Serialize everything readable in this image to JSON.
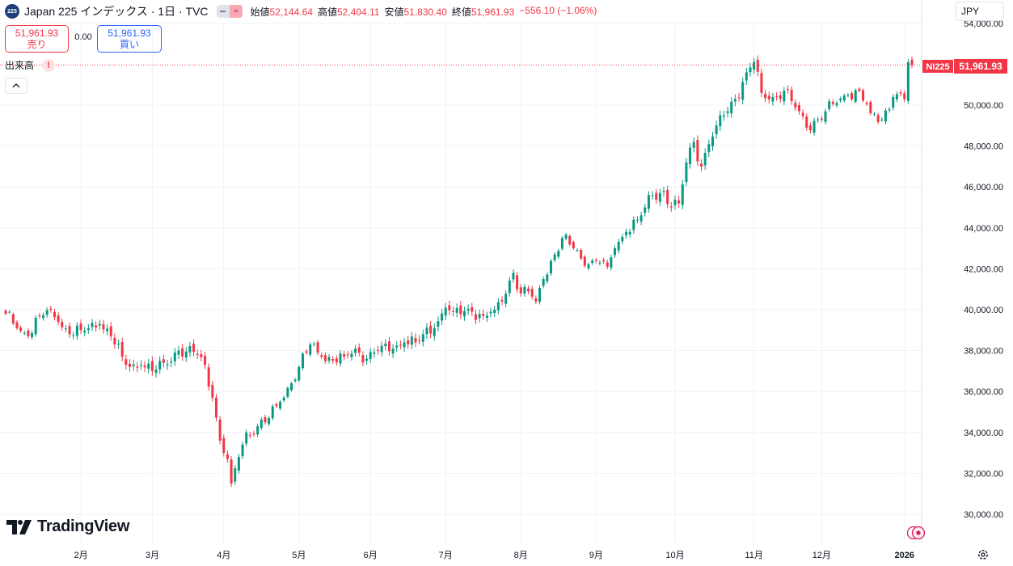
{
  "header": {
    "badge": "225",
    "title": "Japan 225 インデックス · 1日 · TVC",
    "toggle_a": "━",
    "toggle_b": "≈",
    "open_label": "始値",
    "open": "52,144.64",
    "high_label": "高値",
    "high": "52,404.11",
    "low_label": "安値",
    "low": "51,830.40",
    "close_label": "終値",
    "close": "51,961.93",
    "change": "−556.10 (−1.06%)"
  },
  "trade": {
    "sell_price": "51,961.93",
    "sell_label": "売り",
    "spread": "0.00",
    "buy_price": "51,961.93",
    "buy_label": "買い"
  },
  "volume": {
    "label": "出来高",
    "warning": "!"
  },
  "currency": "JPY",
  "branding": {
    "name": "TradingView"
  },
  "icons": {
    "collapse": "chevron-up-icon",
    "record": "record-icon",
    "settings": "gear-icon",
    "logo": "tradingview-logo-icon"
  },
  "colors": {
    "up": "#089981",
    "down": "#f23645",
    "last_price": "#f23645",
    "grid": "#f0f3fa"
  },
  "chart_data": {
    "type": "candlestick",
    "symbol_label": "NI225",
    "last_price": "51,961.93",
    "last_value": 51961.93,
    "ylim": [
      29000,
      54000
    ],
    "y_ticks": [
      "30,000.00",
      "32,000.00",
      "34,000.00",
      "36,000.00",
      "38,000.00",
      "40,000.00",
      "42,000.00",
      "44,000.00",
      "46,000.00",
      "48,000.00",
      "50,000.00",
      "54,000.00"
    ],
    "y_tick_values": [
      30000,
      32000,
      34000,
      36000,
      38000,
      40000,
      42000,
      44000,
      46000,
      48000,
      50000,
      54000
    ],
    "x_ticks": [
      "2月",
      "3月",
      "4月",
      "5月",
      "6月",
      "7月",
      "8月",
      "9月",
      "10月",
      "11月",
      "12月",
      "2026"
    ],
    "x_tick_days": [
      20,
      39,
      58,
      78,
      97,
      117,
      137,
      157,
      178,
      199,
      217,
      239
    ],
    "n_days": 242,
    "close_path": [
      [
        0,
        39800
      ],
      [
        3,
        39100
      ],
      [
        6,
        38700
      ],
      [
        9,
        39700
      ],
      [
        12,
        40000
      ],
      [
        14,
        39400
      ],
      [
        17,
        38800
      ],
      [
        20,
        39000
      ],
      [
        25,
        39300
      ],
      [
        28,
        38700
      ],
      [
        31,
        37700
      ],
      [
        33,
        37200
      ],
      [
        36,
        37300
      ],
      [
        39,
        37000
      ],
      [
        42,
        37400
      ],
      [
        46,
        38000
      ],
      [
        51,
        37800
      ],
      [
        53,
        37300
      ],
      [
        55,
        35700
      ],
      [
        57,
        33600
      ],
      [
        59,
        32700
      ],
      [
        60,
        31500
      ],
      [
        62,
        32800
      ],
      [
        64,
        34000
      ],
      [
        67,
        34300
      ],
      [
        70,
        34700
      ],
      [
        73,
        35500
      ],
      [
        76,
        36400
      ],
      [
        78,
        37200
      ],
      [
        81,
        38300
      ],
      [
        84,
        37700
      ],
      [
        87,
        37500
      ],
      [
        90,
        37700
      ],
      [
        93,
        38100
      ],
      [
        96,
        37600
      ],
      [
        99,
        38000
      ],
      [
        103,
        38100
      ],
      [
        106,
        38400
      ],
      [
        109,
        38400
      ],
      [
        111,
        38800
      ],
      [
        114,
        39100
      ],
      [
        117,
        40100
      ],
      [
        119,
        39900
      ],
      [
        124,
        39900
      ],
      [
        127,
        39700
      ],
      [
        130,
        40000
      ],
      [
        132,
        40400
      ],
      [
        135,
        41800
      ],
      [
        137,
        40800
      ],
      [
        139,
        40900
      ],
      [
        141,
        40400
      ],
      [
        143,
        41500
      ],
      [
        146,
        42700
      ],
      [
        148,
        43500
      ],
      [
        151,
        43000
      ],
      [
        153,
        42500
      ],
      [
        156,
        42400
      ],
      [
        158,
        42300
      ],
      [
        160,
        42100
      ],
      [
        162,
        43000
      ],
      [
        165,
        43800
      ],
      [
        168,
        44400
      ],
      [
        170,
        45000
      ],
      [
        172,
        45600
      ],
      [
        175,
        45800
      ],
      [
        177,
        45000
      ],
      [
        179,
        45200
      ],
      [
        181,
        47200
      ],
      [
        183,
        48200
      ],
      [
        185,
        47000
      ],
      [
        187,
        48100
      ],
      [
        189,
        49000
      ],
      [
        191,
        49500
      ],
      [
        194,
        50300
      ],
      [
        197,
        51600
      ],
      [
        199,
        52100
      ],
      [
        201,
        50600
      ],
      [
        204,
        50400
      ],
      [
        207,
        50700
      ],
      [
        209,
        50200
      ],
      [
        211,
        49700
      ],
      [
        213,
        48900
      ],
      [
        216,
        49300
      ],
      [
        218,
        49700
      ],
      [
        221,
        50100
      ],
      [
        224,
        50500
      ],
      [
        227,
        50700
      ],
      [
        230,
        49600
      ],
      [
        233,
        49300
      ],
      [
        236,
        50400
      ],
      [
        239,
        50300
      ],
      [
        240,
        52100
      ],
      [
        241,
        51961.93
      ]
    ],
    "title": "",
    "xlabel": "",
    "ylabel": "",
    "grid": true,
    "legend": "none"
  }
}
